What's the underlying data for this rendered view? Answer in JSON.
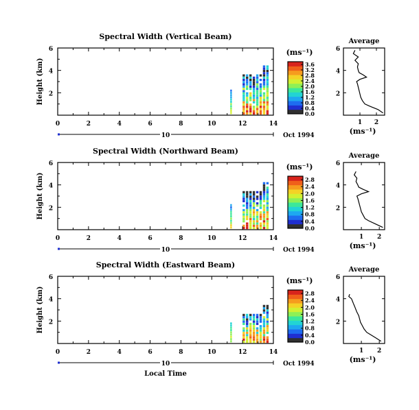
{
  "chart_data": {
    "type": "heatmap",
    "xlabel": "Local Time",
    "date_label": "Oct 1994",
    "day_label": "10",
    "xticks": [
      "0",
      "2",
      "4",
      "6",
      "8",
      "10",
      "12",
      "14"
    ],
    "xlim": [
      0,
      14
    ],
    "ylim": [
      0,
      6
    ],
    "colorbar_unit": "(ms⁻¹)",
    "colors": [
      "#303030",
      "#1f2fd0",
      "#1e6cf0",
      "#1ea8f0",
      "#22d4d4",
      "#3ce89a",
      "#8ef056",
      "#d2f032",
      "#f4d226",
      "#f69c1e",
      "#f0601a",
      "#d8241c"
    ],
    "panels": [
      {
        "title": "Spectral Width (Vertical Beam)",
        "ylabel": "Height (km)",
        "yticks": [
          "2",
          "4",
          "6"
        ],
        "cbar_ticks": [
          "0.0",
          "0.4",
          "0.8",
          "1.2",
          "1.6",
          "2.0",
          "2.4",
          "2.8",
          "3.2",
          "3.6"
        ],
        "cbar_max": 3.8,
        "avg_title": "Average",
        "avg_unit": "(ms⁻¹)",
        "avg_xticks": [
          "1",
          "2"
        ],
        "avg_xlim": [
          0,
          2.5
        ],
        "avg_yticks": [
          "2",
          "4",
          "6"
        ],
        "profile_height_km": [
          0.2,
          0.5,
          0.8,
          1.0,
          1.3,
          1.6,
          1.9,
          2.2,
          2.5,
          2.8,
          3.0,
          3.2,
          3.4,
          3.6,
          3.8,
          4.0,
          4.3,
          4.6,
          4.9,
          5.2,
          5.5,
          5.8
        ],
        "profile_width": [
          2.4,
          2.1,
          1.6,
          1.3,
          1.15,
          1.05,
          1.0,
          0.95,
          0.9,
          0.85,
          0.8,
          1.0,
          1.4,
          1.2,
          0.95,
          0.9,
          0.85,
          0.9,
          0.7,
          0.9,
          0.6,
          0.7
        ]
      },
      {
        "title": "Spectral Width (Northward Beam)",
        "ylabel": "Height (km)",
        "yticks": [
          "2",
          "4",
          "6"
        ],
        "cbar_ticks": [
          "0.0",
          "0.4",
          "0.8",
          "1.2",
          "1.6",
          "2.0",
          "2.4",
          "2.8"
        ],
        "cbar_max": 3.0,
        "avg_title": "Average",
        "avg_unit": "(ms⁻¹)",
        "avg_xticks": [
          "1",
          "2"
        ],
        "avg_xlim": [
          0,
          2.3
        ],
        "avg_yticks": [
          "2",
          "4",
          "6"
        ],
        "profile_height_km": [
          0.2,
          0.5,
          0.8,
          1.0,
          1.3,
          1.6,
          1.9,
          2.2,
          2.5,
          2.8,
          3.0,
          3.2,
          3.4,
          3.6,
          3.8,
          4.0,
          4.3,
          4.6,
          4.9,
          5.2
        ],
        "profile_width": [
          2.2,
          1.8,
          1.4,
          1.2,
          1.1,
          1.0,
          0.95,
          0.9,
          0.85,
          0.8,
          0.75,
          1.0,
          1.4,
          1.1,
          0.85,
          0.8,
          0.7,
          0.75,
          0.6,
          0.7
        ]
      },
      {
        "title": "Spectral Width (Eastward Beam)",
        "ylabel": "Height (km)",
        "yticks": [
          "2",
          "4",
          "6"
        ],
        "cbar_ticks": [
          "0.0",
          "0.4",
          "0.8",
          "1.2",
          "1.6",
          "2.0",
          "2.4",
          "2.8"
        ],
        "cbar_max": 3.0,
        "avg_title": "Average",
        "avg_unit": "(ms⁻¹)",
        "avg_xticks": [
          "1",
          "2"
        ],
        "avg_xlim": [
          0,
          2.3
        ],
        "avg_yticks": [
          "2",
          "4",
          "6"
        ],
        "profile_height_km": [
          0.2,
          0.5,
          0.8,
          1.0,
          1.3,
          1.6,
          1.9,
          2.2,
          2.5,
          2.8,
          3.0,
          3.2,
          3.4,
          3.6,
          3.8,
          4.0,
          4.2,
          4.4
        ],
        "profile_width": [
          2.1,
          1.8,
          1.5,
          1.3,
          1.15,
          1.05,
          0.95,
          0.9,
          0.85,
          0.75,
          0.7,
          0.65,
          0.6,
          0.55,
          0.5,
          0.45,
          0.3,
          0.35
        ]
      }
    ]
  }
}
